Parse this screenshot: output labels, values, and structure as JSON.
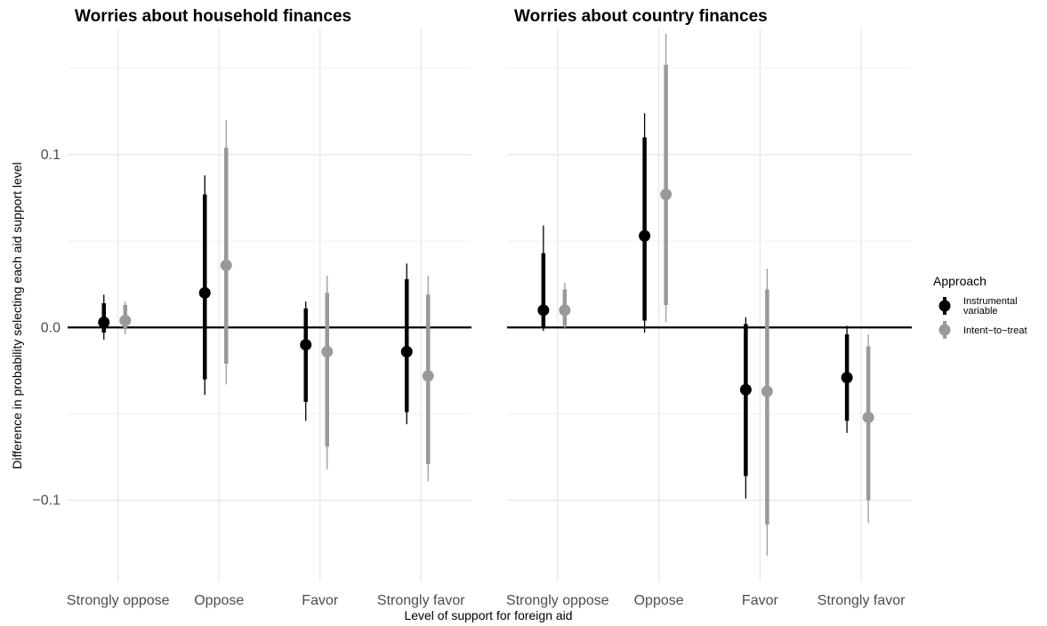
{
  "chart_data": {
    "type": "pointrange",
    "xlabel": "Level of support for foreign aid",
    "ylabel": "Difference in probability selecting each aid support level",
    "categories": [
      "Strongly oppose",
      "Oppose",
      "Favor",
      "Strongly favor"
    ],
    "ylim": [
      -0.147,
      0.173
    ],
    "yticks": [
      -0.1,
      0.0,
      0.1
    ],
    "ytick_labels": [
      "−0.1",
      "0.0",
      "0.1"
    ],
    "grid": true,
    "reference_line": 0,
    "legend": {
      "title": "Approach",
      "position": "right",
      "entries": [
        {
          "label_lines": [
            "Instrumental",
            "variable"
          ],
          "color": "#000000"
        },
        {
          "label_lines": [
            "Intent−to−treat"
          ],
          "color": "#999999"
        }
      ]
    },
    "panels": [
      {
        "title": "Worries about household finances",
        "series": [
          {
            "name": "Instrumental variable",
            "color": "#000000",
            "estimate": [
              0.003,
              0.02,
              -0.01,
              -0.014
            ],
            "ci_inner": [
              [
                -0.003,
                0.014
              ],
              [
                -0.03,
                0.077
              ],
              [
                -0.043,
                0.011
              ],
              [
                -0.049,
                0.028
              ]
            ],
            "ci_outer": [
              [
                -0.007,
                0.019
              ],
              [
                -0.039,
                0.088
              ],
              [
                -0.054,
                0.015
              ],
              [
                -0.056,
                0.037
              ]
            ]
          },
          {
            "name": "Intent-to-treat",
            "color": "#999999",
            "estimate": [
              0.004,
              0.036,
              -0.014,
              -0.028
            ],
            "ci_inner": [
              [
                -0.001,
                0.013
              ],
              [
                -0.021,
                0.104
              ],
              [
                -0.069,
                0.02
              ],
              [
                -0.079,
                0.019
              ]
            ],
            "ci_outer": [
              [
                -0.004,
                0.015
              ],
              [
                -0.033,
                0.12
              ],
              [
                -0.082,
                0.03
              ],
              [
                -0.089,
                0.03
              ]
            ]
          }
        ]
      },
      {
        "title": "Worries about country finances",
        "series": [
          {
            "name": "Instrumental variable",
            "color": "#000000",
            "estimate": [
              0.01,
              0.053,
              -0.036,
              -0.029
            ],
            "ci_inner": [
              [
                0.0,
                0.043
              ],
              [
                0.004,
                0.11
              ],
              [
                -0.086,
                0.002
              ],
              [
                -0.054,
                -0.004
              ]
            ],
            "ci_outer": [
              [
                -0.002,
                0.059
              ],
              [
                -0.003,
                0.124
              ],
              [
                -0.099,
                0.006
              ],
              [
                -0.061,
                0.001
              ]
            ]
          },
          {
            "name": "Intent-to-treat",
            "color": "#999999",
            "estimate": [
              0.01,
              0.077,
              -0.037,
              -0.052
            ],
            "ci_inner": [
              [
                0.001,
                0.022
              ],
              [
                0.013,
                0.152
              ],
              [
                -0.114,
                0.022
              ],
              [
                -0.1,
                -0.011
              ]
            ],
            "ci_outer": [
              [
                -0.001,
                0.026
              ],
              [
                0.003,
                0.17
              ],
              [
                -0.132,
                0.034
              ],
              [
                -0.113,
                -0.004
              ]
            ]
          }
        ]
      }
    ]
  }
}
